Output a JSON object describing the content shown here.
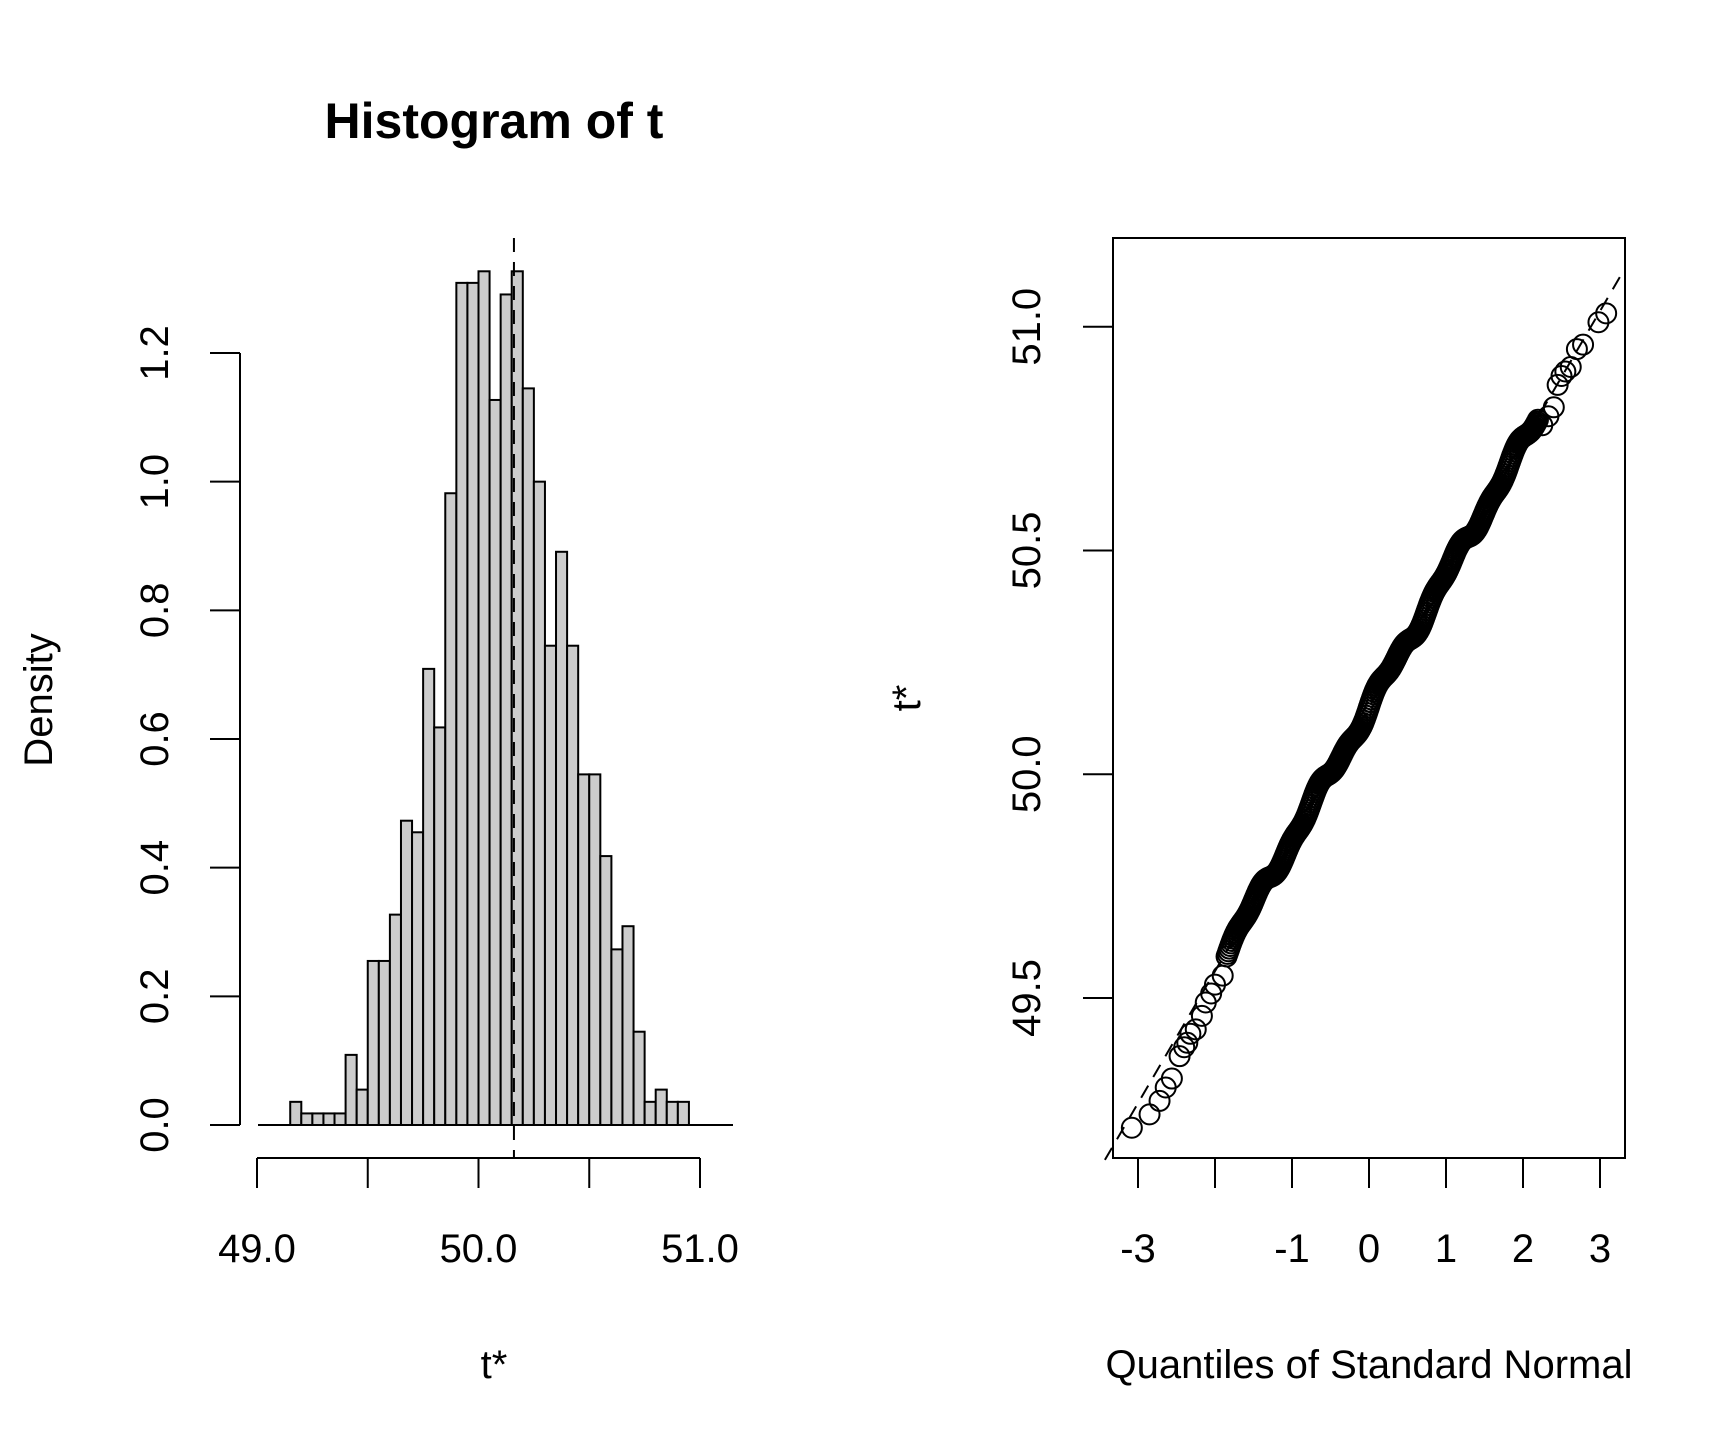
{
  "chart_data": [
    {
      "type": "bar",
      "title": "Histogram of t",
      "xlabel": "t*",
      "ylabel": "Density",
      "xlim": [
        49.0,
        51.0
      ],
      "ylim": [
        0.0,
        1.2
      ],
      "x_ticks": [
        "49.0",
        "50.0",
        "51.0"
      ],
      "y_ticks": [
        "0.0",
        "0.2",
        "0.4",
        "0.6",
        "0.8",
        "1.0",
        "1.2"
      ],
      "reference_line": 50.16,
      "bin_width": 0.05,
      "bin_start": 49.1,
      "values": [
        0.0,
        0.036,
        0.018,
        0.018,
        0.018,
        0.018,
        0.109,
        0.055,
        0.255,
        0.255,
        0.327,
        0.473,
        0.455,
        0.709,
        0.618,
        0.982,
        1.309,
        1.309,
        1.327,
        1.127,
        1.291,
        1.327,
        1.145,
        1.0,
        0.745,
        0.891,
        0.745,
        0.545,
        0.545,
        0.418,
        0.273,
        0.309,
        0.145,
        0.036,
        0.055,
        0.036,
        0.036
      ],
      "fill_color": "#cccccc",
      "grid": false
    },
    {
      "type": "scatter",
      "xlabel": "Quantiles of Standard Normal",
      "ylabel": "t*",
      "xlim": [
        -3.3,
        3.3
      ],
      "ylim": [
        49.1,
        51.15
      ],
      "x_ticks": [
        "-3",
        "-1",
        "0",
        "1",
        "2",
        "3"
      ],
      "y_ticks": [
        "49.5",
        "50.0",
        "50.5",
        "51.0"
      ],
      "reference_line": {
        "intercept": 50.15,
        "slope": 0.295,
        "style": "dashed"
      },
      "point_style": "open-circle",
      "points": [
        [
          -3.08,
          49.21
        ],
        [
          -2.85,
          49.24
        ],
        [
          -2.72,
          49.27
        ],
        [
          -2.64,
          49.3
        ],
        [
          -2.56,
          49.32
        ],
        [
          -2.46,
          49.37
        ],
        [
          -2.4,
          49.39
        ],
        [
          -2.36,
          49.4
        ],
        [
          -2.32,
          49.42
        ],
        [
          -2.25,
          49.43
        ],
        [
          -2.17,
          49.46
        ],
        [
          -2.12,
          49.49
        ],
        [
          -2.05,
          49.51
        ],
        [
          -2.0,
          49.53
        ],
        [
          -1.9,
          49.55
        ],
        [
          2.25,
          50.78
        ],
        [
          2.33,
          50.8
        ],
        [
          2.4,
          50.82
        ],
        [
          2.45,
          50.87
        ],
        [
          2.5,
          50.89
        ],
        [
          2.55,
          50.9
        ],
        [
          2.62,
          50.91
        ],
        [
          2.7,
          50.95
        ],
        [
          2.78,
          50.96
        ],
        [
          2.98,
          51.01
        ],
        [
          3.08,
          51.03
        ]
      ],
      "grid": false
    }
  ]
}
